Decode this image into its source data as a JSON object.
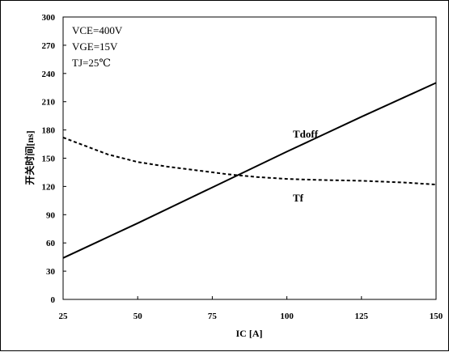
{
  "chart_data": {
    "type": "line",
    "xlabel": "IC [A]",
    "ylabel": "开关时间[ns]",
    "xlim": [
      25,
      150
    ],
    "ylim": [
      0,
      300
    ],
    "x_ticks": [
      25,
      50,
      75,
      100,
      125,
      150
    ],
    "y_ticks": [
      0,
      30,
      60,
      90,
      120,
      150,
      180,
      210,
      240,
      270,
      300
    ],
    "grid": false,
    "annotations": [
      "VCE=400V",
      "VGE=15V",
      "TJ=25℃"
    ],
    "series": [
      {
        "name": "Tdoff",
        "style": "solid",
        "color": "#000000",
        "x": [
          25,
          50,
          75,
          100,
          125,
          150
        ],
        "y": [
          44,
          81,
          119,
          157,
          194,
          230
        ]
      },
      {
        "name": "Tf",
        "style": "dashed",
        "color": "#000000",
        "x": [
          25,
          30,
          40,
          50,
          60,
          70,
          80,
          90,
          100,
          110,
          125,
          140,
          150
        ],
        "y": [
          172,
          166,
          154,
          146,
          141,
          137,
          133,
          130,
          128,
          127,
          126,
          124,
          122
        ]
      }
    ]
  }
}
